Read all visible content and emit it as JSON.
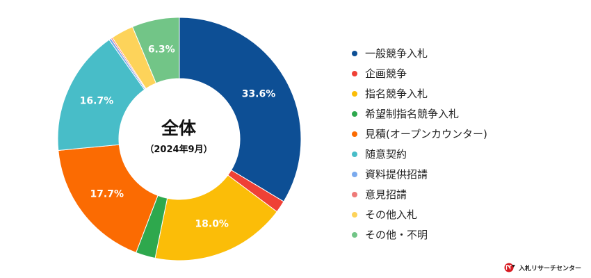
{
  "chart_data": {
    "type": "pie",
    "title": "全体",
    "subtitle": "（2024年9月）",
    "categories": [
      "一般競争入札",
      "企画競争",
      "指名競争入札",
      "希望制指名競争入札",
      "見積(オープンカウンター)",
      "随意契約",
      "資料提供招請",
      "意見招請",
      "その他入札",
      "その他・不明"
    ],
    "values": [
      33.6,
      1.6,
      18.0,
      2.6,
      17.7,
      16.7,
      0.3,
      0.2,
      3.0,
      6.3
    ],
    "data_labels": [
      "33.6%",
      "",
      "18.0%",
      "",
      "17.7%",
      "16.7%",
      "",
      "",
      "",
      "6.3%"
    ],
    "colors": [
      "#0d4f95",
      "#ef4136",
      "#fbbd08",
      "#2ea84d",
      "#fb6b02",
      "#48bdc8",
      "#7aaaee",
      "#ee7a78",
      "#fdd35a",
      "#72c587"
    ],
    "legend": "right"
  },
  "brand": {
    "name": "入札リサーチセンター",
    "icon": "nr-logo-icon"
  }
}
